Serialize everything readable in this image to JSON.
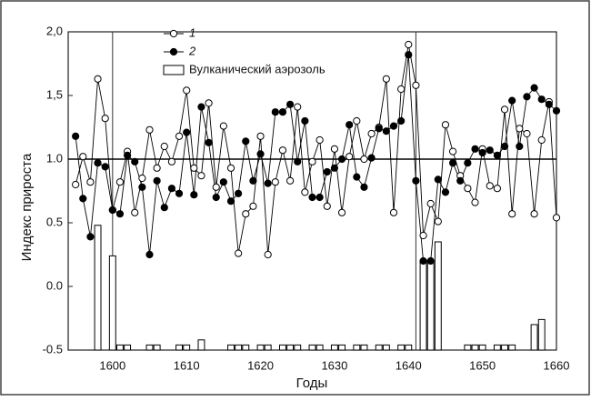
{
  "chart_data": {
    "type": "line",
    "xlabel": "Годы",
    "ylabel": "Индекс прироста",
    "x": [
      1595,
      1596,
      1597,
      1598,
      1599,
      1600,
      1601,
      1602,
      1603,
      1604,
      1605,
      1606,
      1607,
      1608,
      1609,
      1610,
      1611,
      1612,
      1613,
      1614,
      1615,
      1616,
      1617,
      1618,
      1619,
      1620,
      1621,
      1622,
      1623,
      1624,
      1625,
      1626,
      1627,
      1628,
      1629,
      1630,
      1631,
      1632,
      1633,
      1634,
      1635,
      1636,
      1637,
      1638,
      1639,
      1640,
      1641,
      1642,
      1643,
      1644,
      1645,
      1646,
      1647,
      1648,
      1649,
      1650,
      1651,
      1652,
      1653,
      1654,
      1655,
      1656,
      1657,
      1658,
      1659,
      1660
    ],
    "series": [
      {
        "name": "1",
        "kind": "line",
        "marker": "open",
        "color": "#000000",
        "values": [
          0.8,
          1.02,
          0.82,
          1.63,
          1.32,
          0.6,
          0.82,
          1.06,
          0.58,
          0.85,
          1.23,
          0.93,
          1.1,
          0.98,
          1.18,
          1.54,
          0.93,
          0.87,
          1.44,
          0.78,
          1.26,
          0.93,
          0.26,
          0.57,
          0.63,
          1.18,
          0.25,
          0.82,
          1.07,
          0.83,
          1.41,
          0.74,
          0.98,
          1.15,
          0.63,
          1.08,
          0.58,
          1.02,
          1.3,
          1.0,
          1.2,
          1.25,
          1.63,
          0.58,
          1.55,
          1.9,
          1.58,
          0.4,
          0.65,
          0.51,
          1.27,
          1.06,
          0.87,
          0.77,
          0.66,
          1.08,
          0.79,
          0.77,
          1.39,
          0.57,
          1.24,
          1.2,
          0.57,
          1.15,
          1.45,
          0.54
        ]
      },
      {
        "name": "2",
        "kind": "line",
        "marker": "filled",
        "color": "#000000",
        "values": [
          1.18,
          0.69,
          0.39,
          0.97,
          0.94,
          0.6,
          0.57,
          1.03,
          0.98,
          0.78,
          0.25,
          0.83,
          0.62,
          0.77,
          0.73,
          1.21,
          0.72,
          1.41,
          1.13,
          0.7,
          0.82,
          0.67,
          0.73,
          1.14,
          0.83,
          1.04,
          0.81,
          1.37,
          1.37,
          1.43,
          0.98,
          1.3,
          0.7,
          0.7,
          0.9,
          0.93,
          1.0,
          1.27,
          0.86,
          0.78,
          1.01,
          1.24,
          1.22,
          1.26,
          1.3,
          1.82,
          0.83,
          0.2,
          0.2,
          0.84,
          0.74,
          0.97,
          0.83,
          0.97,
          1.08,
          1.05,
          1.07,
          1.03,
          1.1,
          1.46,
          1.1,
          1.49,
          1.56,
          1.47,
          1.43,
          1.38
        ]
      },
      {
        "name": "Вулканический аэрозоль",
        "kind": "bar",
        "color": "#000000",
        "values": [
          null,
          null,
          null,
          0.48,
          null,
          0.24,
          -0.46,
          -0.46,
          null,
          null,
          -0.46,
          -0.46,
          null,
          null,
          -0.46,
          -0.46,
          null,
          -0.42,
          null,
          null,
          null,
          -0.46,
          -0.46,
          -0.46,
          null,
          -0.46,
          -0.46,
          null,
          -0.46,
          -0.46,
          -0.46,
          null,
          -0.46,
          -0.46,
          null,
          -0.46,
          -0.46,
          null,
          -0.46,
          -0.46,
          null,
          -0.46,
          -0.46,
          null,
          -0.46,
          -0.46,
          null,
          0.2,
          0.2,
          0.35,
          null,
          null,
          null,
          -0.46,
          -0.46,
          -0.46,
          null,
          -0.46,
          -0.46,
          -0.46,
          null,
          null,
          -0.3,
          -0.26,
          null,
          null
        ]
      }
    ],
    "vlines": [
      1600,
      1641
    ],
    "hline": 1.0,
    "xlim": [
      1594,
      1660
    ],
    "ylim": [
      -0.5,
      2.0
    ],
    "xticks": [
      1600,
      1610,
      1620,
      1630,
      1640,
      1650,
      1660
    ],
    "yticks": [
      {
        "value": -0.5,
        "label": "-0.5"
      },
      {
        "value": 0,
        "label": "0.0"
      },
      {
        "value": 0.5,
        "label": "0.5"
      },
      {
        "value": 1,
        "label": "1.0"
      },
      {
        "value": 1.5,
        "label": "1,5"
      },
      {
        "value": 2,
        "label": "2,0"
      }
    ]
  }
}
